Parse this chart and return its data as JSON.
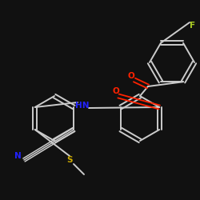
{
  "background_color": "#111111",
  "bond_color": "#cccccc",
  "atom_colors": {
    "N": "#2222ff",
    "O": "#ff2200",
    "S": "#ccaa00",
    "F": "#aacc22",
    "C": "#cccccc"
  },
  "figsize": [
    2.5,
    2.5
  ],
  "dpi": 100
}
